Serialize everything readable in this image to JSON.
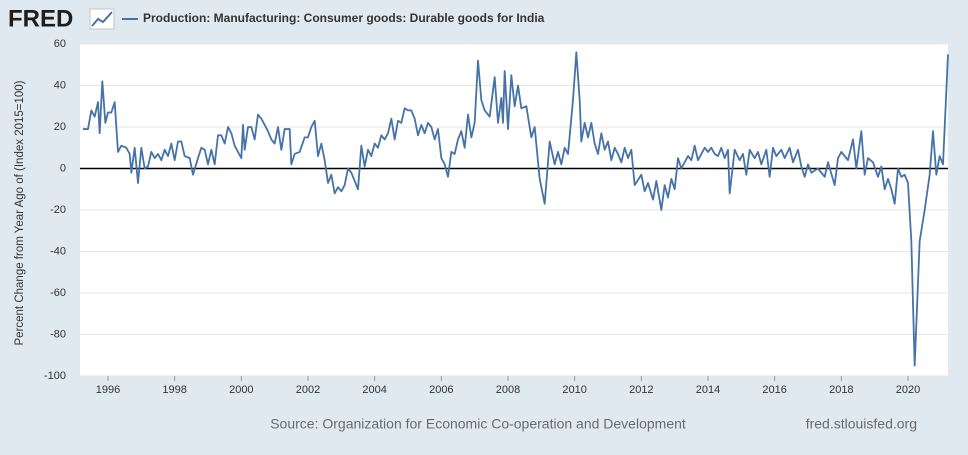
{
  "logo": "FRED",
  "chart_data": {
    "type": "line",
    "title": "Production: Manufacturing: Consumer goods: Durable goods for India",
    "y_label": "Percent Change from Year Ago of (Index 2015=100)",
    "source": "Source: Organization for Economic Co-operation and Development",
    "site": "fred.stlouisfed.org",
    "xlim": [
      1995.16,
      2021.2
    ],
    "xticks": [
      1996,
      1998,
      2000,
      2002,
      2004,
      2006,
      2008,
      2010,
      2012,
      2014,
      2016,
      2018,
      2020
    ],
    "ylim": [
      -100,
      60
    ],
    "yticks": [
      -100,
      -80,
      -60,
      -40,
      -20,
      0,
      20,
      40,
      60
    ],
    "grid": true,
    "x": [
      1995.25,
      1995.4,
      1995.5,
      1995.6,
      1995.7,
      1995.75,
      1995.83,
      1995.92,
      1996.0,
      1996.1,
      1996.2,
      1996.3,
      1996.4,
      1996.55,
      1996.65,
      1996.7,
      1996.8,
      1996.9,
      1997.0,
      1997.1,
      1997.2,
      1997.3,
      1997.4,
      1997.5,
      1997.6,
      1997.7,
      1997.8,
      1997.9,
      1998.0,
      1998.1,
      1998.2,
      1998.3,
      1998.45,
      1998.55,
      1998.7,
      1998.8,
      1998.9,
      1999.0,
      1999.1,
      1999.2,
      1999.3,
      1999.4,
      1999.5,
      1999.6,
      1999.7,
      1999.8,
      2000.0,
      2000.05,
      2000.1,
      2000.2,
      2000.3,
      2000.4,
      2000.5,
      2000.6,
      2000.8,
      2000.9,
      2001.0,
      2001.1,
      2001.2,
      2001.3,
      2001.45,
      2001.5,
      2001.6,
      2001.75,
      2001.9,
      2002.0,
      2002.1,
      2002.2,
      2002.3,
      2002.4,
      2002.5,
      2002.6,
      2002.7,
      2002.8,
      2002.9,
      2003.0,
      2003.1,
      2003.2,
      2003.3,
      2003.4,
      2003.5,
      2003.6,
      2003.7,
      2003.8,
      2003.9,
      2004.0,
      2004.1,
      2004.2,
      2004.3,
      2004.4,
      2004.5,
      2004.6,
      2004.7,
      2004.8,
      2004.9,
      2005.0,
      2005.1,
      2005.2,
      2005.3,
      2005.4,
      2005.5,
      2005.6,
      2005.7,
      2005.8,
      2005.9,
      2006.0,
      2006.1,
      2006.2,
      2006.3,
      2006.4,
      2006.5,
      2006.6,
      2006.7,
      2006.8,
      2006.9,
      2007.0,
      2007.1,
      2007.2,
      2007.3,
      2007.45,
      2007.6,
      2007.7,
      2007.8,
      2007.85,
      2007.9,
      2008.0,
      2008.1,
      2008.2,
      2008.3,
      2008.4,
      2008.55,
      2008.7,
      2008.8,
      2008.95,
      2009.1,
      2009.25,
      2009.4,
      2009.5,
      2009.6,
      2009.7,
      2009.8,
      2009.95,
      2010.05,
      2010.15,
      2010.2,
      2010.3,
      2010.4,
      2010.5,
      2010.6,
      2010.7,
      2010.8,
      2010.9,
      2011.0,
      2011.1,
      2011.2,
      2011.3,
      2011.4,
      2011.5,
      2011.6,
      2011.7,
      2011.8,
      2012.0,
      2012.1,
      2012.2,
      2012.35,
      2012.45,
      2012.6,
      2012.7,
      2012.8,
      2012.9,
      2013.0,
      2013.1,
      2013.2,
      2013.4,
      2013.5,
      2013.6,
      2013.7,
      2013.9,
      2014.0,
      2014.1,
      2014.2,
      2014.3,
      2014.4,
      2014.5,
      2014.6,
      2014.65,
      2014.8,
      2014.95,
      2015.05,
      2015.15,
      2015.25,
      2015.4,
      2015.5,
      2015.6,
      2015.75,
      2015.85,
      2015.95,
      2016.05,
      2016.2,
      2016.3,
      2016.45,
      2016.55,
      2016.7,
      2016.8,
      2016.9,
      2017.0,
      2017.1,
      2017.3,
      2017.5,
      2017.6,
      2017.8,
      2017.9,
      2018.0,
      2018.2,
      2018.35,
      2018.45,
      2018.6,
      2018.7,
      2018.8,
      2018.95,
      2019.1,
      2019.2,
      2019.3,
      2019.4,
      2019.5,
      2019.6,
      2019.7,
      2019.8,
      2019.9,
      2020.0,
      2020.1,
      2020.2,
      2020.35,
      2020.5,
      2020.65,
      2020.75,
      2020.85,
      2020.95,
      2021.05,
      2021.2
    ],
    "series": [
      {
        "name": "Production: Manufacturing: Consumer goods: Durable goods for India",
        "color": "#4572a7",
        "values": [
          19,
          19,
          28,
          25,
          32,
          17,
          42,
          22,
          27,
          27,
          32,
          8,
          11,
          10,
          7,
          -2,
          10,
          -7,
          10,
          0,
          1,
          8,
          5,
          7,
          4,
          9,
          6,
          12,
          4,
          13,
          13,
          6,
          5,
          -3,
          5,
          10,
          9,
          2,
          9,
          2,
          16,
          16,
          12,
          20,
          17,
          11,
          5,
          21,
          9,
          20,
          20,
          14,
          26,
          24,
          18,
          14,
          12,
          20,
          9,
          19,
          19,
          2,
          7,
          8,
          15,
          15,
          20,
          23,
          6,
          12,
          4,
          -7,
          -3,
          -12,
          -9,
          -11,
          -8,
          0,
          -2,
          -6,
          -10,
          11,
          1,
          9,
          6,
          12,
          10,
          16,
          14,
          17,
          24,
          14,
          23,
          22,
          29,
          28,
          28,
          24,
          16,
          21,
          17,
          22,
          20,
          14,
          19,
          5,
          2,
          -4,
          8,
          7,
          14,
          18,
          10,
          26,
          15,
          22,
          52,
          33,
          28,
          25,
          44,
          22,
          34,
          22,
          47,
          19,
          45,
          30,
          40,
          29,
          30,
          15,
          20,
          -5,
          -17,
          13,
          2,
          8,
          2,
          10,
          7,
          33,
          56,
          33,
          13,
          22,
          15,
          22,
          12,
          7,
          17,
          9,
          13,
          4,
          10,
          7,
          3,
          10,
          5,
          9,
          -8,
          -3,
          -11,
          -7,
          -15,
          -6,
          -20,
          -8,
          -14,
          -5,
          -10,
          5,
          0,
          6,
          4,
          11,
          4,
          10,
          8,
          10,
          7,
          6,
          10,
          5,
          9,
          -12,
          9,
          4,
          7,
          -3,
          9,
          5,
          8,
          2,
          9,
          -4,
          10,
          6,
          9,
          5,
          10,
          3,
          9,
          1,
          -4,
          2,
          -2,
          0,
          -4,
          3,
          -8,
          5,
          8,
          4,
          14,
          0,
          18,
          -3,
          5,
          3,
          -4,
          1,
          -10,
          -5,
          -10,
          -17,
          0,
          -4,
          -3,
          -7,
          -35,
          -95,
          -35,
          -20,
          -3,
          18,
          -3,
          6,
          2,
          55
        ]
      }
    ]
  }
}
